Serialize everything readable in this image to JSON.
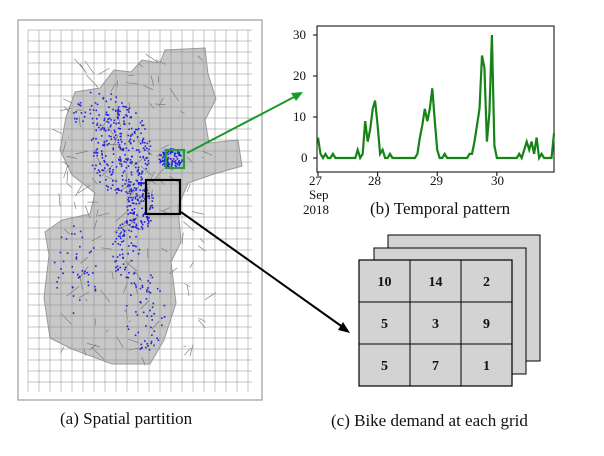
{
  "captions": {
    "a": "(a) Spatial partition",
    "b": "(b) Temporal pattern",
    "c": "(c) Bike demand at each grid"
  },
  "colors": {
    "line": "#168316",
    "arrow_green": "#1a9a2a",
    "points": "#1f1fe0",
    "region": "#c8c8c8",
    "grid_cell": "#d3d3d3",
    "highlight_box_green": "#22a03a"
  },
  "chart_data": {
    "type": "line",
    "title": "",
    "xlabel": "",
    "ylabel": "",
    "ylim": [
      0,
      31
    ],
    "yticks": [
      0,
      10,
      20,
      30
    ],
    "xticks": [
      "27",
      "28",
      "29",
      "30"
    ],
    "x_extra_labels": [
      "Sep",
      "2018"
    ],
    "x_start_label": "27 Sep 2018",
    "x_hours": [
      0,
      1,
      2,
      3,
      4,
      5,
      6,
      7,
      8,
      9,
      10,
      11,
      12,
      13,
      14,
      15,
      16,
      17,
      18,
      19,
      20,
      21,
      22,
      23,
      24,
      25,
      26,
      27,
      28,
      29,
      30,
      31,
      32,
      33,
      34,
      35,
      36,
      37,
      38,
      39,
      40,
      41,
      42,
      43,
      44,
      45,
      46,
      47,
      48,
      49,
      50,
      51,
      52,
      53,
      54,
      55,
      56,
      57,
      58,
      59,
      60,
      61,
      62,
      63,
      64,
      65,
      66,
      67,
      68,
      69,
      70,
      71,
      72,
      73,
      74,
      75,
      76,
      77,
      78,
      79,
      80,
      81,
      82,
      83,
      84,
      85,
      86,
      87,
      88,
      89,
      90,
      91,
      92,
      93,
      94,
      95
    ],
    "series": [
      {
        "values": [
          5,
          1,
          0,
          1,
          0,
          0,
          1,
          0,
          0,
          0,
          0,
          0,
          0,
          0,
          0,
          0,
          2,
          0,
          1,
          9,
          4,
          7,
          12,
          14,
          8,
          1,
          2,
          0,
          0,
          1,
          0,
          0,
          0,
          0,
          0,
          0,
          0,
          0,
          0,
          0,
          1,
          5,
          8,
          12,
          9,
          12,
          17,
          9,
          2,
          0,
          0,
          1,
          0,
          0,
          0,
          0,
          0,
          0,
          0,
          0,
          0,
          1,
          1,
          4,
          8,
          12,
          25,
          22,
          4,
          11,
          30,
          3,
          0,
          0,
          0,
          0,
          0,
          0,
          0,
          0,
          0,
          1,
          0,
          2,
          4,
          2,
          4,
          1,
          5,
          0,
          1,
          0,
          0,
          0,
          0,
          6
        ]
      }
    ]
  },
  "grid_demand": {
    "rows": [
      [
        "10",
        "14",
        "2"
      ],
      [
        "5",
        "3",
        "9"
      ],
      [
        "5",
        "7",
        "1"
      ]
    ]
  }
}
